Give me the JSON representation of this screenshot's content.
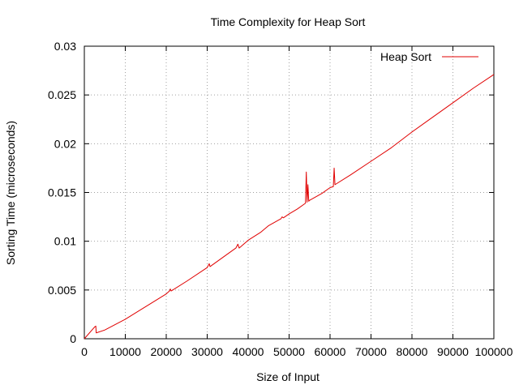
{
  "chart_data": {
    "type": "line",
    "title": "Time Complexity for Heap Sort",
    "xlabel": "Size of Input",
    "ylabel": "Sorting Time (microseconds)",
    "xlim": [
      0,
      100000
    ],
    "ylim": [
      0,
      0.03
    ],
    "xticks": [
      0,
      10000,
      20000,
      30000,
      40000,
      50000,
      60000,
      70000,
      80000,
      90000,
      100000
    ],
    "xtick_labels": [
      "0",
      "10000",
      "20000",
      "30000",
      "40000",
      "50000",
      "60000",
      "70000",
      "80000",
      "90000",
      "100000"
    ],
    "yticks": [
      0,
      0.005,
      0.01,
      0.015,
      0.02,
      0.025,
      0.03
    ],
    "ytick_labels": [
      "0",
      "0.005",
      "0.01",
      "0.015",
      "0.02",
      "0.025",
      "0.03"
    ],
    "grid": true,
    "legend_position": "top-right",
    "series": [
      {
        "name": "Heap Sort",
        "color": "#e00000",
        "points": [
          [
            0,
            0
          ],
          [
            2500,
            0.0012
          ],
          [
            2800,
            0.0013
          ],
          [
            2900,
            0.0006
          ],
          [
            5000,
            0.0009
          ],
          [
            10000,
            0.002
          ],
          [
            15000,
            0.0033
          ],
          [
            20000,
            0.0046
          ],
          [
            20800,
            0.0049
          ],
          [
            21000,
            0.0051
          ],
          [
            21200,
            0.0049
          ],
          [
            25000,
            0.0059
          ],
          [
            30000,
            0.0073
          ],
          [
            30500,
            0.0077
          ],
          [
            30700,
            0.0074
          ],
          [
            35000,
            0.0087
          ],
          [
            37000,
            0.0093
          ],
          [
            37500,
            0.0097
          ],
          [
            37800,
            0.0093
          ],
          [
            40000,
            0.0101
          ],
          [
            43000,
            0.0109
          ],
          [
            45000,
            0.0116
          ],
          [
            48000,
            0.0123
          ],
          [
            48300,
            0.0125
          ],
          [
            48600,
            0.0124
          ],
          [
            50000,
            0.0128
          ],
          [
            52000,
            0.0133
          ],
          [
            54000,
            0.0139
          ],
          [
            54200,
            0.0171
          ],
          [
            54400,
            0.014
          ],
          [
            54600,
            0.0158
          ],
          [
            54800,
            0.0141
          ],
          [
            55000,
            0.0142
          ],
          [
            58000,
            0.0149
          ],
          [
            60000,
            0.0155
          ],
          [
            60800,
            0.0156
          ],
          [
            61000,
            0.0175
          ],
          [
            61200,
            0.0158
          ],
          [
            65000,
            0.0168
          ],
          [
            70000,
            0.0182
          ],
          [
            75000,
            0.0196
          ],
          [
            80000,
            0.0212
          ],
          [
            85000,
            0.0227
          ],
          [
            90000,
            0.0242
          ],
          [
            95000,
            0.0257
          ],
          [
            100000,
            0.0271
          ]
        ]
      }
    ]
  }
}
